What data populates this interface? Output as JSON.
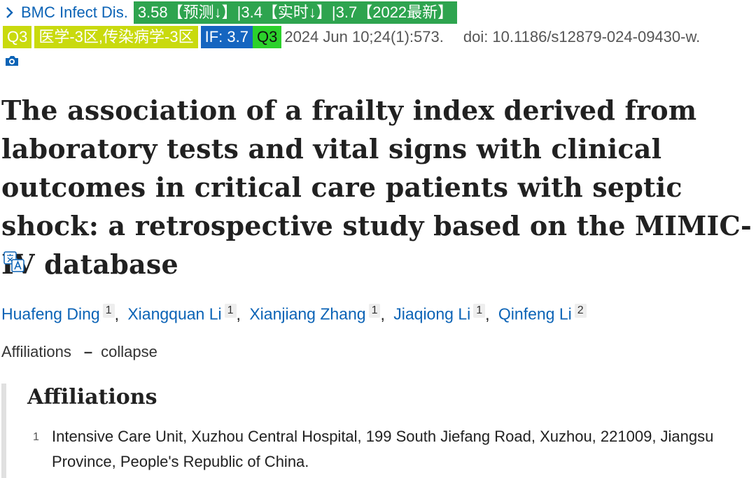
{
  "journal": {
    "name": "BMC Infect Dis.",
    "score_badge": "3.58【预测↓】|3.4【实时↓】|3.7【2022最新】"
  },
  "tags": {
    "quartile1": "Q3",
    "category": "医学-3区,传染病学-3区",
    "impact_factor": "IF: 3.7",
    "quartile2": "Q3"
  },
  "citation": {
    "date_volume": "2024 Jun 10;24(1):573.",
    "doi": "doi: 10.1186/s12879-024-09430-w."
  },
  "icons": {
    "camera": "camera-icon",
    "translate": "translate-icon",
    "chevron": "chevron-right-icon"
  },
  "article": {
    "title": "The association of a frailty index derived from laboratory tests and vital signs with clinical outcomes in critical care patients with septic shock: a retrospective study based on the MIMIC-IV database"
  },
  "authors": [
    {
      "name": "Huafeng Ding",
      "aff": "1"
    },
    {
      "name": "Xiangquan Li",
      "aff": "1"
    },
    {
      "name": "Xianjiang Zhang",
      "aff": "1"
    },
    {
      "name": "Jiaqiong Li",
      "aff": "1"
    },
    {
      "name": "Qinfeng Li",
      "aff": "2"
    }
  ],
  "affiliations": {
    "toggle_label": "Affiliations",
    "dash": "–",
    "toggle_action": "collapse",
    "heading": "Affiliations",
    "items": [
      {
        "num": "1",
        "text": "Intensive Care Unit, Xuzhou Central Hospital, 199 South Jiefang Road, Xuzhou, 221009, Jiangsu Province, People's Republic of China."
      }
    ]
  },
  "colors": {
    "link": "#0b63b6",
    "badge_green": "#2ea44f",
    "badge_lime": "#c9da0e",
    "badge_blue": "#1565c0",
    "badge_bright_green": "#2bd12b"
  }
}
